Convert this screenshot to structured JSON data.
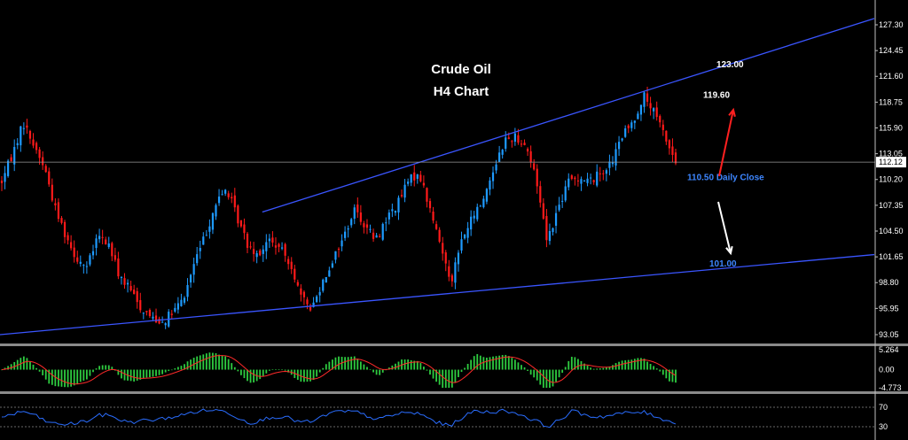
{
  "chart_data": [
    {
      "type": "candlestick",
      "title": "Crude Oil",
      "subtitle": "H4 Chart",
      "y_ticks": [
        "127.30",
        "124.45",
        "121.60",
        "118.75",
        "115.90",
        "113.05",
        "110.20",
        "107.35",
        "104.50",
        "101.65",
        "98.80",
        "95.95",
        "93.05"
      ],
      "ylim": [
        93.05,
        127.3
      ],
      "current_price": {
        "label": "112.12",
        "value": 112.12
      },
      "close_series_approx": [
        110.0,
        113.0,
        116.5,
        114.0,
        111.5,
        107.0,
        104.0,
        101.5,
        100.5,
        104.0,
        103.0,
        99.5,
        98.0,
        96.0,
        95.0,
        94.5,
        95.5,
        97.0,
        101.0,
        104.0,
        107.5,
        109.2,
        106.0,
        103.0,
        102.0,
        103.5,
        102.5,
        101.0,
        97.0,
        96.0,
        99.0,
        101.5,
        104.0,
        107.0,
        105.0,
        103.5,
        106.0,
        107.5,
        110.0,
        111.0,
        107.0,
        103.0,
        99.0,
        103.5,
        106.0,
        108.0,
        111.5,
        114.5,
        115.0,
        114.0,
        110.0,
        103.5,
        107.0,
        110.0,
        110.5,
        110.0,
        111.0,
        112.0,
        115.0,
        116.5,
        119.5,
        117.5,
        115.0,
        112.0
      ],
      "annotations": [
        {
          "text": "123.00",
          "color": "#ffffff",
          "value": 123.0
        },
        {
          "text": "119.60",
          "color": "#ffffff",
          "value": 119.6
        },
        {
          "text": "110.50 Daily Close",
          "color": "#3d86ff",
          "value": 110.5
        },
        {
          "text": "101.00",
          "color": "#3d86ff",
          "value": 101.0
        }
      ],
      "trendlines": [
        {
          "name": "upper",
          "color": "#3a55ff",
          "from": [
            0.3,
            106.6
          ],
          "to": [
            1.0,
            128.0
          ]
        },
        {
          "name": "lower",
          "color": "#3a55ff",
          "from": [
            0.0,
            93.05
          ],
          "to": [
            1.0,
            101.9
          ]
        }
      ],
      "arrows": [
        {
          "color": "#ff2020",
          "direction": "up"
        },
        {
          "color": "#ffffff",
          "direction": "down"
        }
      ],
      "colors": {
        "bull": "#1e9bff",
        "bear": "#ff1a1a",
        "background": "#000000",
        "axis": "#c0c0c0"
      }
    },
    {
      "type": "histogram",
      "name": "MACD",
      "y_ticks": [
        "5.264",
        "0.00",
        "-4.773"
      ],
      "ylim": [
        -4.773,
        5.264
      ],
      "colors": {
        "bars": "#2ecc40",
        "signal": "#ff2a2a"
      }
    },
    {
      "type": "line",
      "name": "RSI",
      "y_ticks": [
        "70",
        "30"
      ],
      "ylim": [
        0,
        100
      ],
      "levels": [
        70,
        30
      ],
      "colors": {
        "line": "#2a6dff"
      }
    }
  ]
}
